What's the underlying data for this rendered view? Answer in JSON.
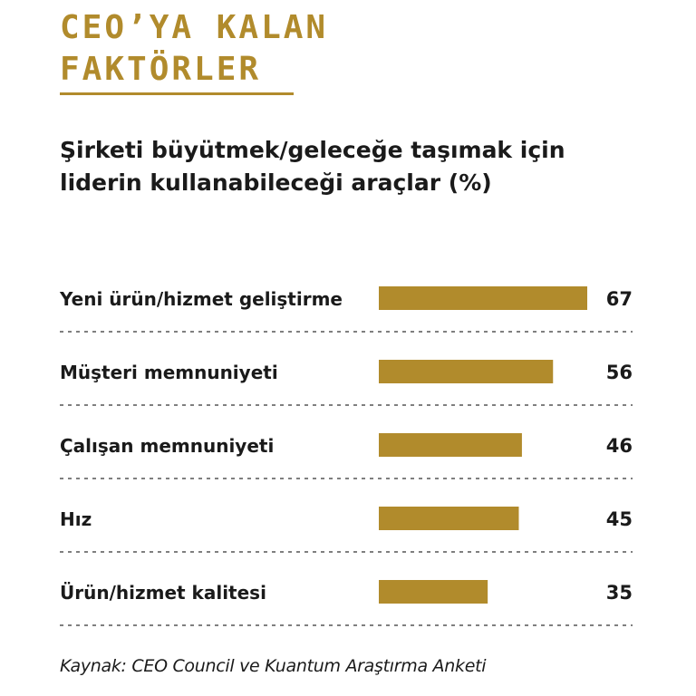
{
  "header": {
    "title_lines": [
      "CEO’YA KALAN",
      "FAKTÖRLER"
    ],
    "accent_color": "#b18b2c"
  },
  "chart_data": {
    "type": "bar",
    "orientation": "horizontal",
    "title": "Şirketi büyütmek/geleceğe taşımak için liderin kullanabileceği araçlar (%)",
    "categories": [
      "Yeni ürün/hizmet geliştirme",
      "Müşteri memnuniyeti",
      "Çalışan memnuniyeti",
      "Hız",
      "Ürün/hizmet kalitesi"
    ],
    "values": [
      67,
      56,
      46,
      45,
      35
    ],
    "xlim": [
      0,
      67
    ],
    "bar_color": "#b18b2c",
    "grid": false,
    "legend": "none"
  },
  "source": "Kaynak: CEO Council ve Kuantum Araştırma Anketi"
}
